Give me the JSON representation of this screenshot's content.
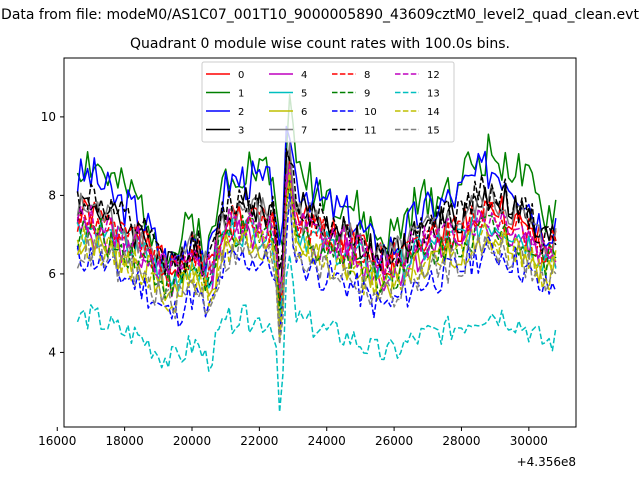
{
  "figure": {
    "suptitle": "Data from file: modeM0/AS1C07_001T10_9000005890_43609cztM0_level2_quad_clean.evt",
    "title": "Quadrant 0 module wise count rates with 100.0s bins."
  },
  "chart_data": {
    "type": "line",
    "title": "Quadrant 0 module wise count rates with 100.0s bins.",
    "xlabel": "",
    "ylabel": "",
    "x_offset_label": "+4.356e8",
    "xlim": [
      16200,
      31400
    ],
    "ylim": [
      2.1,
      11.5
    ],
    "xticks": [
      16000,
      18000,
      20000,
      22000,
      24000,
      26000,
      28000,
      30000
    ],
    "yticks": [
      4,
      6,
      8,
      10
    ],
    "grid": false,
    "legend": {
      "location": "top-center",
      "ncol": 4
    },
    "series": [
      {
        "name": "0",
        "color": "#ff0000",
        "dash": "solid",
        "base": 7.0,
        "amp": 0.55,
        "noise": 0.45,
        "seed": 1
      },
      {
        "name": "1",
        "color": "#008000",
        "dash": "solid",
        "base": 8.0,
        "amp": 0.95,
        "noise": 0.6,
        "seed": 2
      },
      {
        "name": "2",
        "color": "#0000ff",
        "dash": "solid",
        "base": 7.7,
        "amp": 0.9,
        "noise": 0.55,
        "seed": 3
      },
      {
        "name": "3",
        "color": "#000000",
        "dash": "solid",
        "base": 7.2,
        "amp": 0.7,
        "noise": 0.5,
        "seed": 4
      },
      {
        "name": "4",
        "color": "#bf00bf",
        "dash": "solid",
        "base": 6.6,
        "amp": 0.55,
        "noise": 0.45,
        "seed": 5
      },
      {
        "name": "5",
        "color": "#00bfbf",
        "dash": "solid",
        "base": 6.7,
        "amp": 0.55,
        "noise": 0.45,
        "seed": 6
      },
      {
        "name": "6",
        "color": "#bfbf00",
        "dash": "solid",
        "base": 6.4,
        "amp": 0.55,
        "noise": 0.45,
        "seed": 7
      },
      {
        "name": "7",
        "color": "#808080",
        "dash": "solid",
        "base": 7.1,
        "amp": 0.65,
        "noise": 0.5,
        "seed": 8
      },
      {
        "name": "8",
        "color": "#ff0000",
        "dash": "dashed",
        "base": 6.9,
        "amp": 0.55,
        "noise": 0.45,
        "seed": 9
      },
      {
        "name": "9",
        "color": "#008000",
        "dash": "dashed",
        "base": 6.6,
        "amp": 0.55,
        "noise": 0.45,
        "seed": 10
      },
      {
        "name": "10",
        "color": "#0000ff",
        "dash": "dashed",
        "base": 5.9,
        "amp": 0.6,
        "noise": 0.45,
        "seed": 11
      },
      {
        "name": "11",
        "color": "#000000",
        "dash": "dashed",
        "base": 7.3,
        "amp": 0.75,
        "noise": 0.5,
        "seed": 12
      },
      {
        "name": "12",
        "color": "#bf00bf",
        "dash": "dashed",
        "base": 6.9,
        "amp": 0.55,
        "noise": 0.45,
        "seed": 13
      },
      {
        "name": "13",
        "color": "#00bfbf",
        "dash": "dashed",
        "base": 4.5,
        "amp": 0.45,
        "noise": 0.35,
        "seed": 14
      },
      {
        "name": "14",
        "color": "#bfbf00",
        "dash": "dashed",
        "base": 6.3,
        "amp": 0.55,
        "noise": 0.45,
        "seed": 15
      },
      {
        "name": "15",
        "color": "#808080",
        "dash": "dashed",
        "base": 6.1,
        "amp": 0.55,
        "noise": 0.45,
        "seed": 16
      }
    ]
  }
}
